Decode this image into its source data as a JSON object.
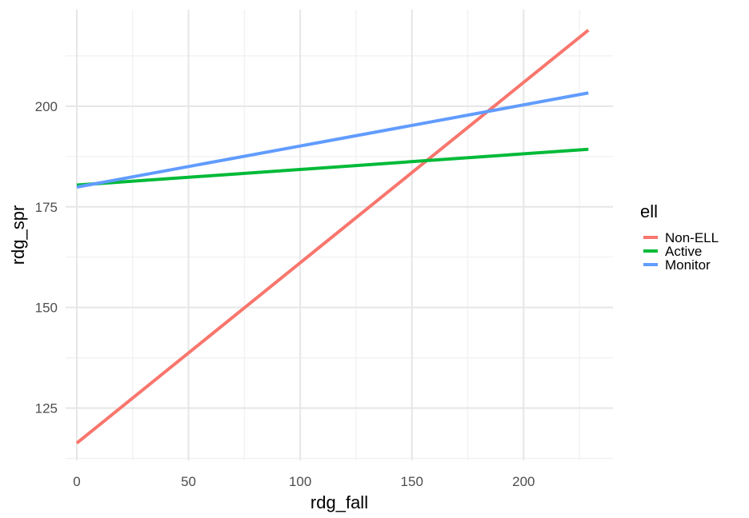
{
  "chart_data": {
    "type": "line",
    "xlabel": "rdg_fall",
    "ylabel": "rdg_spr",
    "xlim": [
      -5,
      240
    ],
    "ylim": [
      112,
      224
    ],
    "x_ticks": [
      0,
      50,
      100,
      150,
      200
    ],
    "y_ticks": [
      125,
      150,
      175,
      200
    ],
    "grid": true,
    "legend": {
      "title": "ell",
      "position": "right"
    },
    "series": [
      {
        "name": "Non-ELL",
        "color": "#F8766D",
        "x": [
          0,
          229
        ],
        "y": [
          116.3,
          218.9
        ]
      },
      {
        "name": "Active",
        "color": "#00BA38",
        "x": [
          0,
          229
        ],
        "y": [
          180.4,
          189.3
        ]
      },
      {
        "name": "Monitor",
        "color": "#619CFF",
        "x": [
          0,
          229
        ],
        "y": [
          179.9,
          203.3
        ]
      }
    ]
  }
}
